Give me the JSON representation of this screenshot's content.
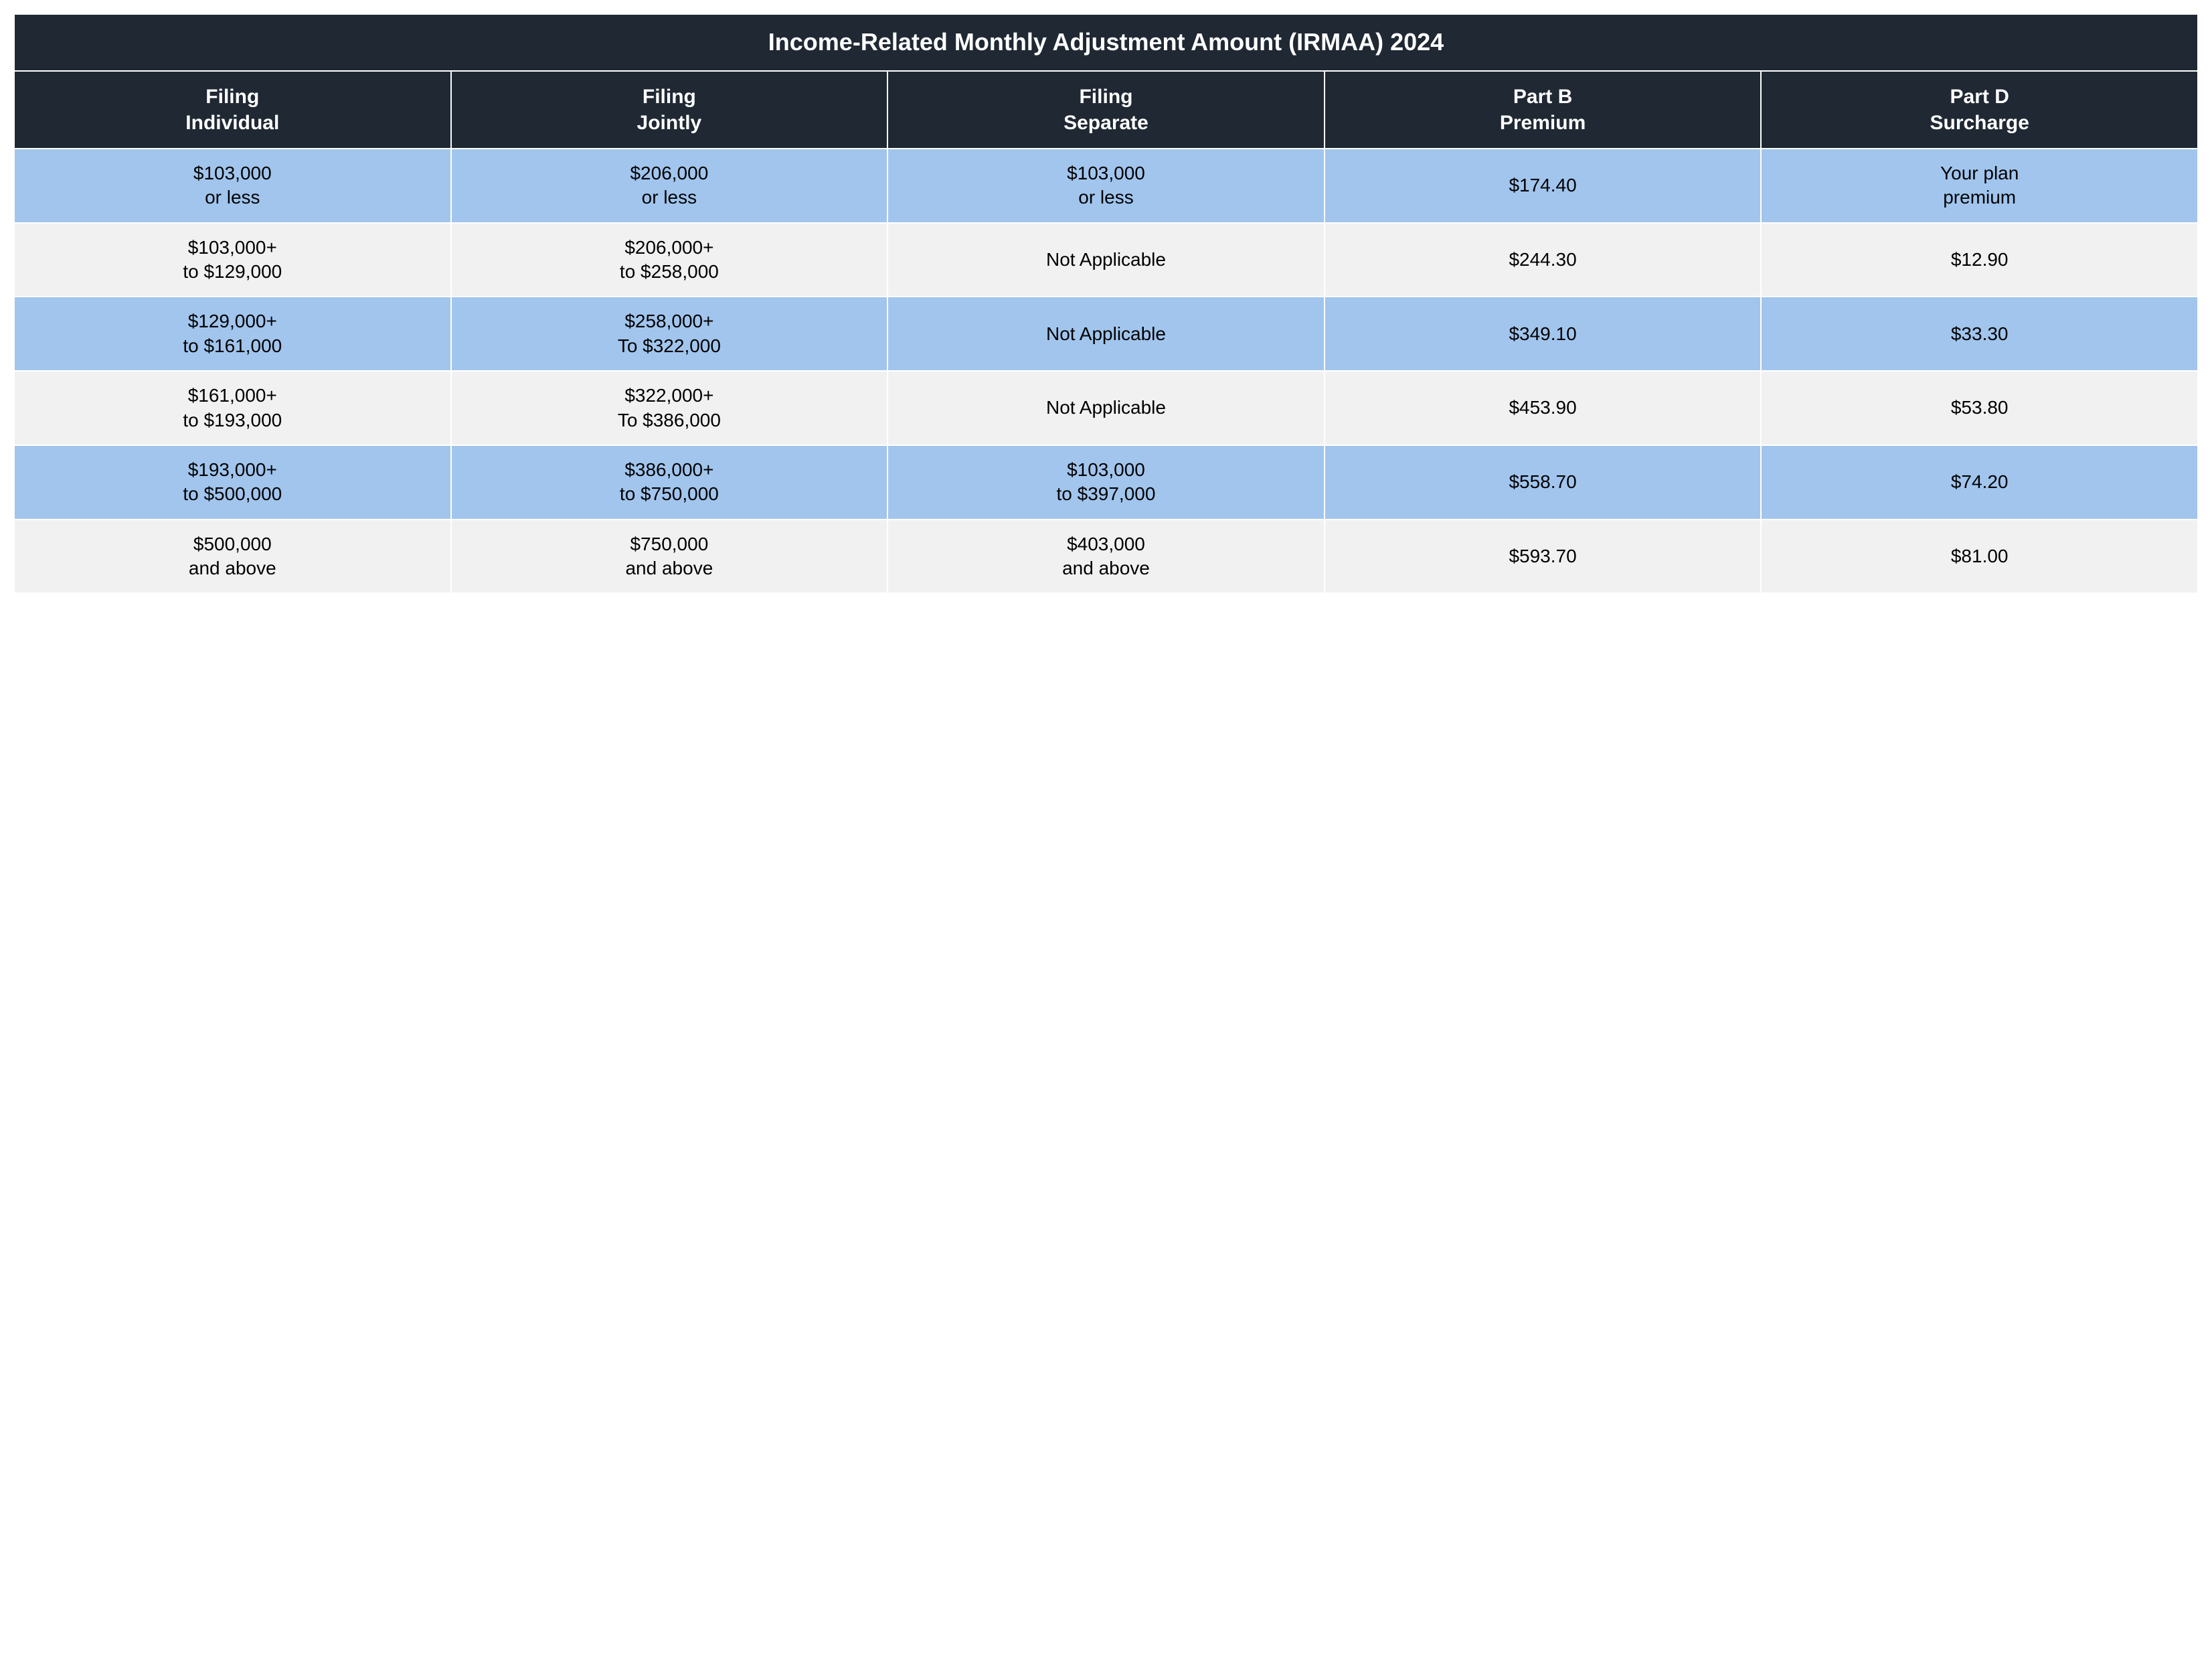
{
  "table": {
    "type": "table",
    "title": "Income-Related Monthly Adjustment Amount (IRMAA) 2024",
    "title_bg": "#1f2833",
    "title_color": "#ffffff",
    "title_fontsize": 36,
    "header_bg": "#1f2833",
    "header_color": "#ffffff",
    "header_fontsize": 30,
    "body_fontsize": 28,
    "body_color": "#000000",
    "row_bg_odd": "#a1c5ed",
    "row_bg_even": "#f1f1f1",
    "border_color": "#ffffff",
    "columns": [
      {
        "line1": "Filing",
        "line2": "Individual"
      },
      {
        "line1": "Filing",
        "line2": "Jointly"
      },
      {
        "line1": "Filing",
        "line2": "Separate"
      },
      {
        "line1": "Part B",
        "line2": "Premium"
      },
      {
        "line1": "Part D",
        "line2": "Surcharge"
      }
    ],
    "rows": [
      {
        "cells": [
          {
            "line1": "$103,000",
            "line2": "or less"
          },
          {
            "line1": "$206,000",
            "line2": "or less"
          },
          {
            "line1": "$103,000",
            "line2": "or less"
          },
          {
            "line1": "$174.40",
            "line2": ""
          },
          {
            "line1": "Your plan",
            "line2": "premium"
          }
        ]
      },
      {
        "cells": [
          {
            "line1": "$103,000+",
            "line2": "to $129,000"
          },
          {
            "line1": "$206,000+",
            "line2": "to $258,000"
          },
          {
            "line1": "Not Applicable",
            "line2": ""
          },
          {
            "line1": "$244.30",
            "line2": ""
          },
          {
            "line1": "$12.90",
            "line2": ""
          }
        ]
      },
      {
        "cells": [
          {
            "line1": "$129,000+",
            "line2": "to $161,000"
          },
          {
            "line1": "$258,000+",
            "line2": "To $322,000"
          },
          {
            "line1": "Not Applicable",
            "line2": ""
          },
          {
            "line1": "$349.10",
            "line2": ""
          },
          {
            "line1": "$33.30",
            "line2": ""
          }
        ]
      },
      {
        "cells": [
          {
            "line1": "$161,000+",
            "line2": "to $193,000"
          },
          {
            "line1": "$322,000+",
            "line2": "To $386,000"
          },
          {
            "line1": "Not Applicable",
            "line2": ""
          },
          {
            "line1": "$453.90",
            "line2": ""
          },
          {
            "line1": "$53.80",
            "line2": ""
          }
        ]
      },
      {
        "cells": [
          {
            "line1": "$193,000+",
            "line2": "to $500,000"
          },
          {
            "line1": "$386,000+",
            "line2": "to $750,000"
          },
          {
            "line1": "$103,000",
            "line2": "to $397,000"
          },
          {
            "line1": "$558.70",
            "line2": ""
          },
          {
            "line1": "$74.20",
            "line2": ""
          }
        ]
      },
      {
        "cells": [
          {
            "line1": "$500,000",
            "line2": "and above"
          },
          {
            "line1": "$750,000",
            "line2": "and above"
          },
          {
            "line1": "$403,000",
            "line2": "and above"
          },
          {
            "line1": "$593.70",
            "line2": ""
          },
          {
            "line1": "$81.00",
            "line2": ""
          }
        ]
      }
    ]
  }
}
